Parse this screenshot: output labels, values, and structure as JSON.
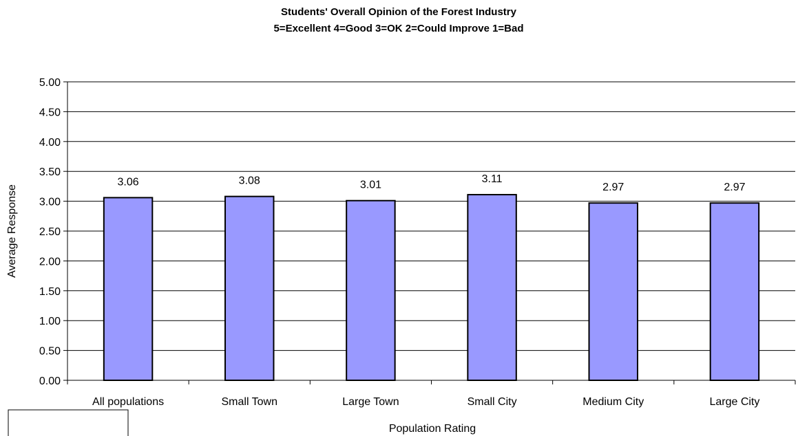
{
  "chart_data": {
    "type": "bar",
    "title": "Students' Overall Opinion of the Forest Industry",
    "subtitle": "5=Excellent  4=Good  3=OK  2=Could Improve 1=Bad",
    "xlabel": "Population Rating",
    "ylabel": "Average Response",
    "categories": [
      "All populations",
      "Small Town",
      "Large Town",
      "Small City",
      "Medium City",
      "Large City"
    ],
    "values": [
      3.06,
      3.08,
      3.01,
      3.11,
      2.97,
      2.97
    ],
    "value_labels": [
      "3.06",
      "3.08",
      "3.01",
      "3.11",
      "2.97",
      "2.97"
    ],
    "ylim": [
      0,
      5
    ],
    "yticks": [
      "0.00",
      "0.50",
      "1.00",
      "1.50",
      "2.00",
      "2.50",
      "3.00",
      "3.50",
      "4.00",
      "4.50",
      "5.00"
    ],
    "bar_color": "#9999ff",
    "grid": true,
    "legend": "none"
  }
}
